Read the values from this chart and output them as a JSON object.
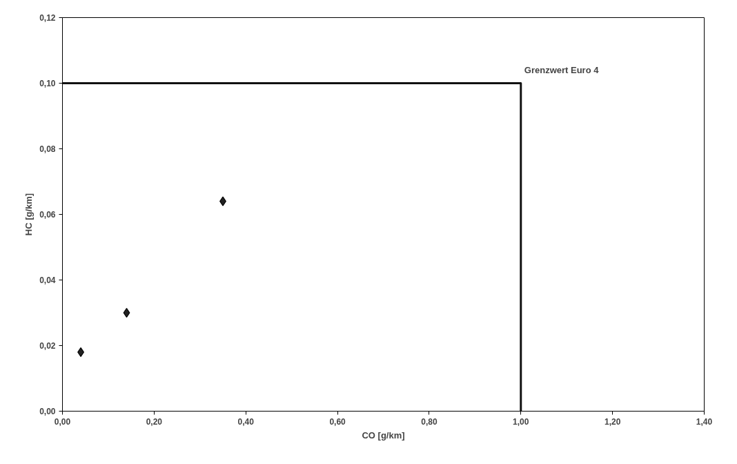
{
  "chart_data": {
    "type": "scatter",
    "xlabel": "CO [g/km]",
    "ylabel": "HC [g/km]",
    "series": [
      {
        "color": "#222222",
        "marker": "diamond",
        "x": [
          0.04,
          0.14,
          0.35
        ],
        "values": [
          0.018,
          0.03,
          0.064
        ]
      },
      {
        "type": "line",
        "color": "#111111",
        "marker": "none",
        "line_style": "solid",
        "x": [
          0,
          1,
          1
        ],
        "values": [
          0.1,
          0.1,
          0
        ]
      }
    ],
    "annotations": [
      {
        "text": "Grenzwert Euro 4",
        "x": 1,
        "y": 0.1
      }
    ],
    "xlim": [
      0,
      1.4
    ],
    "ylim": [
      0,
      0.12
    ],
    "xticks": [
      {
        "value": 0,
        "label": "0,00"
      },
      {
        "value": 0.2,
        "label": "0,20"
      },
      {
        "value": 0.4,
        "label": "0,40"
      },
      {
        "value": 0.6,
        "label": "0,60"
      },
      {
        "value": 0.8,
        "label": "0,80"
      },
      {
        "value": 1.0,
        "label": "1,00"
      },
      {
        "value": 1.2,
        "label": "1,20"
      },
      {
        "value": 1.4,
        "label": "1,40"
      }
    ],
    "yticks": [
      {
        "value": 0,
        "label": "0,00"
      },
      {
        "value": 0.02,
        "label": "0,02"
      },
      {
        "value": 0.04,
        "label": "0,04"
      },
      {
        "value": 0.06,
        "label": "0,06"
      },
      {
        "value": 0.08,
        "label": "0,08"
      },
      {
        "value": 0.1,
        "label": "0,10"
      },
      {
        "value": 0.12,
        "label": "0,12"
      }
    ],
    "grid": false
  }
}
